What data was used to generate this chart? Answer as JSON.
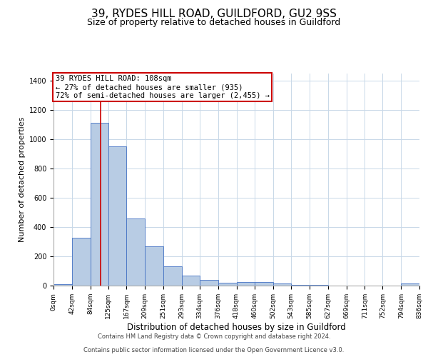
{
  "title1": "39, RYDES HILL ROAD, GUILDFORD, GU2 9SS",
  "title2": "Size of property relative to detached houses in Guildford",
  "xlabel": "Distribution of detached houses by size in Guildford",
  "ylabel": "Number of detached properties",
  "footer1": "Contains HM Land Registry data © Crown copyright and database right 2024.",
  "footer2": "Contains public sector information licensed under the Open Government Licence v3.0.",
  "annotation_line1": "39 RYDES HILL ROAD: 108sqm",
  "annotation_line2": "← 27% of detached houses are smaller (935)",
  "annotation_line3": "72% of semi-detached houses are larger (2,455) →",
  "bar_color": "#b8cce4",
  "bar_edge_color": "#4472c4",
  "grid_color": "#c8d8e8",
  "background_color": "#ffffff",
  "red_line_color": "#cc0000",
  "annotation_box_edge": "#cc0000",
  "bins": [
    0,
    42,
    84,
    125,
    167,
    209,
    251,
    293,
    334,
    376,
    418,
    460,
    502,
    543,
    585,
    627,
    669,
    711,
    752,
    794,
    836
  ],
  "bin_labels": [
    "0sqm",
    "42sqm",
    "84sqm",
    "125sqm",
    "167sqm",
    "209sqm",
    "251sqm",
    "293sqm",
    "334sqm",
    "376sqm",
    "418sqm",
    "460sqm",
    "502sqm",
    "543sqm",
    "585sqm",
    "627sqm",
    "669sqm",
    "711sqm",
    "752sqm",
    "794sqm",
    "836sqm"
  ],
  "values": [
    8,
    325,
    1110,
    950,
    460,
    270,
    130,
    70,
    40,
    20,
    25,
    25,
    15,
    5,
    5,
    2,
    2,
    0,
    0,
    15
  ],
  "ylim": [
    0,
    1450
  ],
  "red_line_x": 108,
  "title1_fontsize": 11,
  "title2_fontsize": 9,
  "ylabel_fontsize": 8,
  "xlabel_fontsize": 8.5,
  "tick_fontsize": 6.5,
  "ann_fontsize": 7.5,
  "footer_fontsize": 6
}
